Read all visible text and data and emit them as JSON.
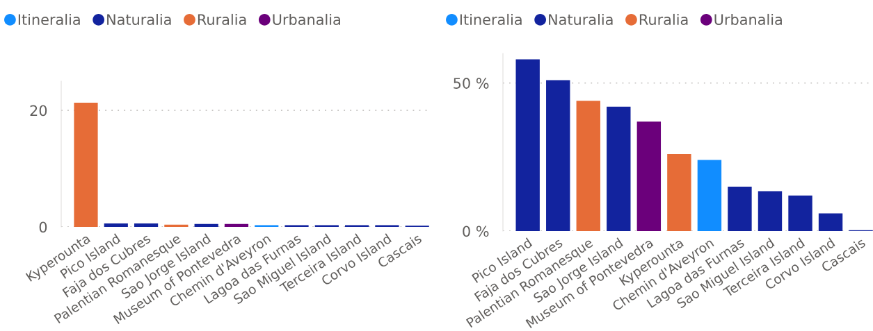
{
  "chart_data": [
    {
      "type": "bar",
      "stacked": true,
      "legend": "top left",
      "grid": "y",
      "categories": [
        "Kyperounta",
        "Pico Island",
        "Faja dos Cubres",
        "Palentian Romanesque",
        "Sao Jorge Island",
        "Museum of Pontevedra",
        "Chemin d'Aveyron",
        "Lagoa das Furnas",
        "Sao Miguel Island",
        "Terceira Island",
        "Corvo Island",
        "Cascais"
      ],
      "series": [
        {
          "name": "Itineralia",
          "color": "#118dff",
          "values": [
            null,
            null,
            null,
            null,
            null,
            null,
            0.3,
            null,
            null,
            null,
            null,
            null
          ]
        },
        {
          "name": "Naturalia",
          "color": "#12239e",
          "values": [
            null,
            0.6,
            0.6,
            null,
            0.5,
            null,
            null,
            0.3,
            0.3,
            0.3,
            0.3,
            0.2
          ]
        },
        {
          "name": "Ruralia",
          "color": "#e66c37",
          "values": [
            21.3,
            null,
            null,
            0.4,
            null,
            null,
            null,
            null,
            null,
            null,
            null,
            null
          ]
        },
        {
          "name": "Urbanalia",
          "color": "#6b007b",
          "values": [
            null,
            null,
            null,
            null,
            null,
            0.5,
            null,
            null,
            null,
            null,
            null,
            null
          ]
        }
      ],
      "ylim": [
        0,
        25
      ],
      "yticks": [
        0,
        20
      ]
    },
    {
      "type": "bar",
      "stacked": true,
      "legend": "top left",
      "grid": "y",
      "categories": [
        "Pico Island",
        "Faja dos Cubres",
        "Palentian Romanesque",
        "Sao Jorge Island",
        "Museum of Pontevedra",
        "Kyperounta",
        "Chemin d'Aveyron",
        "Lagoa das Furnas",
        "Sao Miguel Island",
        "Terceira Island",
        "Corvo Island",
        "Cascais"
      ],
      "series": [
        {
          "name": "Itineralia",
          "color": "#118dff",
          "values": [
            null,
            null,
            null,
            null,
            null,
            null,
            24,
            null,
            null,
            null,
            null,
            null
          ]
        },
        {
          "name": "Naturalia",
          "color": "#12239e",
          "values": [
            58,
            51,
            null,
            42,
            null,
            null,
            null,
            15,
            13.5,
            12,
            6,
            0.3
          ]
        },
        {
          "name": "Ruralia",
          "color": "#e66c37",
          "values": [
            null,
            null,
            44,
            null,
            null,
            26,
            null,
            null,
            null,
            null,
            null,
            null
          ]
        },
        {
          "name": "Urbanalia",
          "color": "#6b007b",
          "values": [
            null,
            null,
            null,
            null,
            37,
            null,
            null,
            null,
            null,
            null,
            null,
            null
          ]
        }
      ],
      "ylim": [
        0,
        60
      ],
      "yticks": [
        {
          "value": 0,
          "label": "0 %"
        },
        {
          "value": 50,
          "label": "50 %"
        }
      ]
    }
  ]
}
